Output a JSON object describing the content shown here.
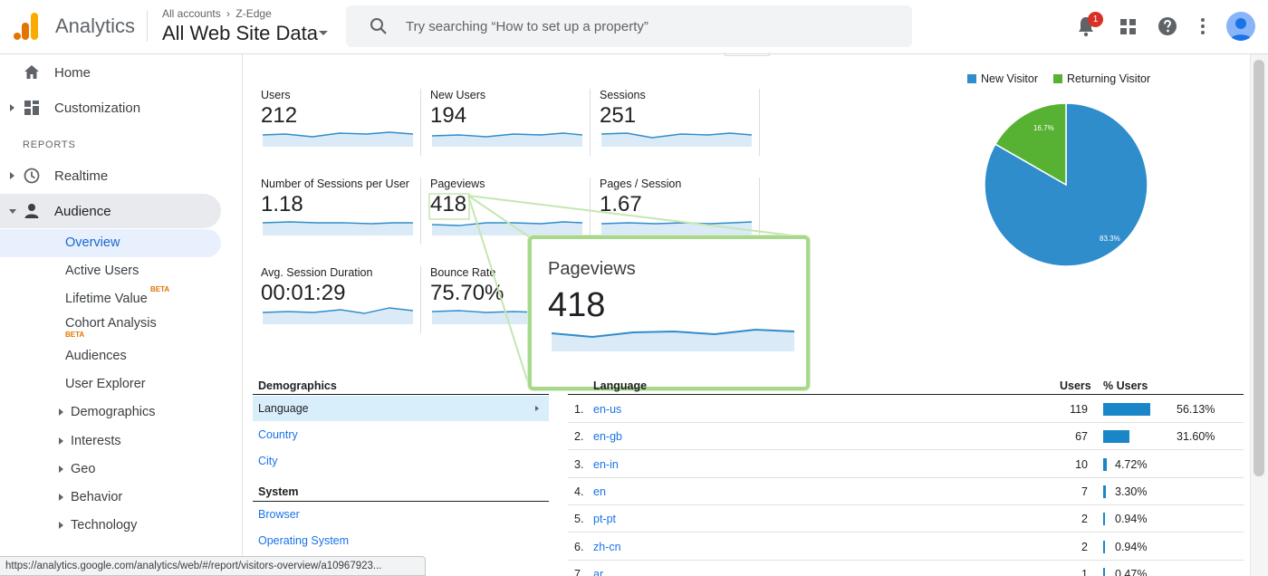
{
  "header": {
    "app_name": "Analytics",
    "breadcrumb_account": "All accounts",
    "breadcrumb_property": "Z-Edge",
    "view_name": "All Web Site Data",
    "search_placeholder": "Try searching “How to set up a property”",
    "notification_count": "1"
  },
  "sidebar": {
    "home": "Home",
    "customization": "Customization",
    "reports_label": "REPORTS",
    "realtime": "Realtime",
    "audience": "Audience",
    "audience_items": [
      {
        "label": "Overview"
      },
      {
        "label": "Active Users"
      },
      {
        "label": "Lifetime Value",
        "badge": "BETA"
      },
      {
        "label": "Cohort Analysis",
        "badge": "BETA"
      },
      {
        "label": "Audiences"
      },
      {
        "label": "User Explorer"
      },
      {
        "label": "Demographics"
      },
      {
        "label": "Interests"
      },
      {
        "label": "Geo"
      },
      {
        "label": "Behavior"
      },
      {
        "label": "Technology"
      }
    ]
  },
  "status_url": "https://analytics.google.com/analytics/web/#/report/visitors-overview/a10967923...",
  "metrics": [
    {
      "label": "Users",
      "value": "212"
    },
    {
      "label": "New Users",
      "value": "194"
    },
    {
      "label": "Sessions",
      "value": "251"
    },
    {
      "label": "Number of Sessions per User",
      "value": "1.18"
    },
    {
      "label": "Pageviews",
      "value": "418"
    },
    {
      "label": "Pages / Session",
      "value": "1.67"
    },
    {
      "label": "Avg. Session Duration",
      "value": "00:01:29"
    },
    {
      "label": "Bounce Rate",
      "value": "75.70%"
    }
  ],
  "zoom_callout": {
    "label": "Pageviews",
    "value": "418"
  },
  "pie": {
    "legend": [
      {
        "name": "New Visitor",
        "color": "#2f8dcb"
      },
      {
        "name": "Returning Visitor",
        "color": "#57b233"
      }
    ],
    "slices": [
      {
        "name": "New Visitor",
        "percent": 83.3,
        "label": "83.3%"
      },
      {
        "name": "Returning Visitor",
        "percent": 16.7,
        "label": "16.7%"
      }
    ]
  },
  "demographics": {
    "heading": "Demographics",
    "items": [
      "Language",
      "Country",
      "City"
    ],
    "system_heading": "System",
    "system_items": [
      "Browser",
      "Operating System"
    ]
  },
  "language_table": {
    "headers": {
      "language": "Language",
      "users": "Users",
      "pct_users": "% Users"
    },
    "rows": [
      {
        "idx": "1.",
        "lang": "en-us",
        "users": "119",
        "pct": "56.13%",
        "share": 56.13
      },
      {
        "idx": "2.",
        "lang": "en-gb",
        "users": "67",
        "pct": "31.60%",
        "share": 31.6
      },
      {
        "idx": "3.",
        "lang": "en-in",
        "users": "10",
        "pct": "4.72%",
        "share": 4.72
      },
      {
        "idx": "4.",
        "lang": "en",
        "users": "7",
        "pct": "3.30%",
        "share": 3.3
      },
      {
        "idx": "5.",
        "lang": "pt-pt",
        "users": "2",
        "pct": "0.94%",
        "share": 0.94
      },
      {
        "idx": "6.",
        "lang": "zh-cn",
        "users": "2",
        "pct": "0.94%",
        "share": 0.94
      },
      {
        "idx": "7.",
        "lang": "ar",
        "users": "1",
        "pct": "0.47%",
        "share": 0.47
      }
    ]
  }
}
